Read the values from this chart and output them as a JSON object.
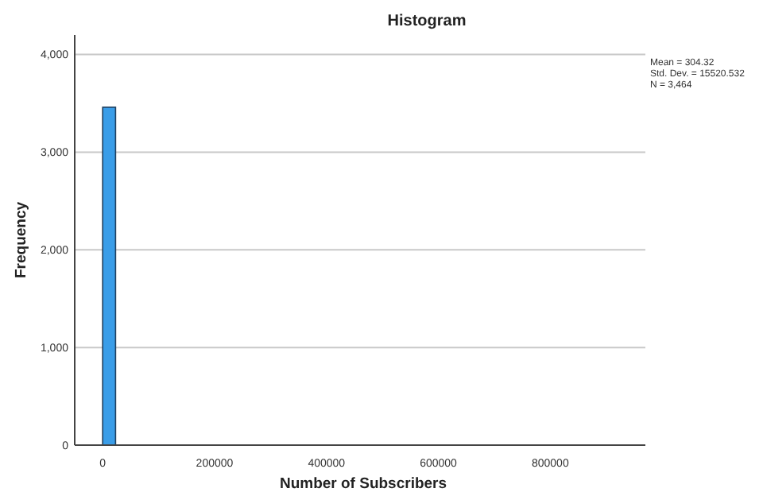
{
  "chart_data": {
    "type": "histogram",
    "title": "Histogram",
    "xlabel": "Number of Subscribers",
    "ylabel": "Frequency",
    "bins": [
      0,
      23000,
      46000,
      69000,
      92000,
      115000,
      138000,
      161000,
      184000,
      207000,
      230000,
      253000,
      276000,
      299000,
      322000,
      345000,
      368000,
      391000,
      414000,
      437000,
      460000,
      483000,
      506000,
      529000,
      552000,
      575000,
      598000,
      621000,
      644000,
      667000,
      690000,
      713000,
      736000,
      759000,
      782000,
      805000,
      828000,
      851000,
      874000,
      897000,
      920000
    ],
    "values": [
      3460,
      0,
      0,
      0,
      0,
      0,
      0,
      0,
      0,
      0,
      0,
      0,
      0,
      0,
      0,
      0,
      0,
      0,
      0,
      0,
      0,
      0,
      0,
      0,
      0,
      0,
      0,
      0,
      0,
      0,
      0,
      0,
      0,
      0,
      0,
      0,
      0,
      0,
      0,
      0
    ],
    "color": "#3a9de8",
    "xlim": [
      -50000,
      970000
    ],
    "xticks": [
      0,
      200000,
      400000,
      600000,
      800000
    ],
    "ylim": [
      0,
      4200
    ],
    "yticks": [
      0,
      {
        "value": 1000,
        "label": "1,000"
      },
      {
        "value": 2000,
        "label": "2,000"
      },
      {
        "value": 3000,
        "label": "3,000"
      },
      {
        "value": 4000,
        "label": "4,000"
      }
    ],
    "grid": "y",
    "annotations": [
      "Mean = 304.32",
      "Std. Dev. = 15520.532",
      "N = 3,464"
    ]
  }
}
